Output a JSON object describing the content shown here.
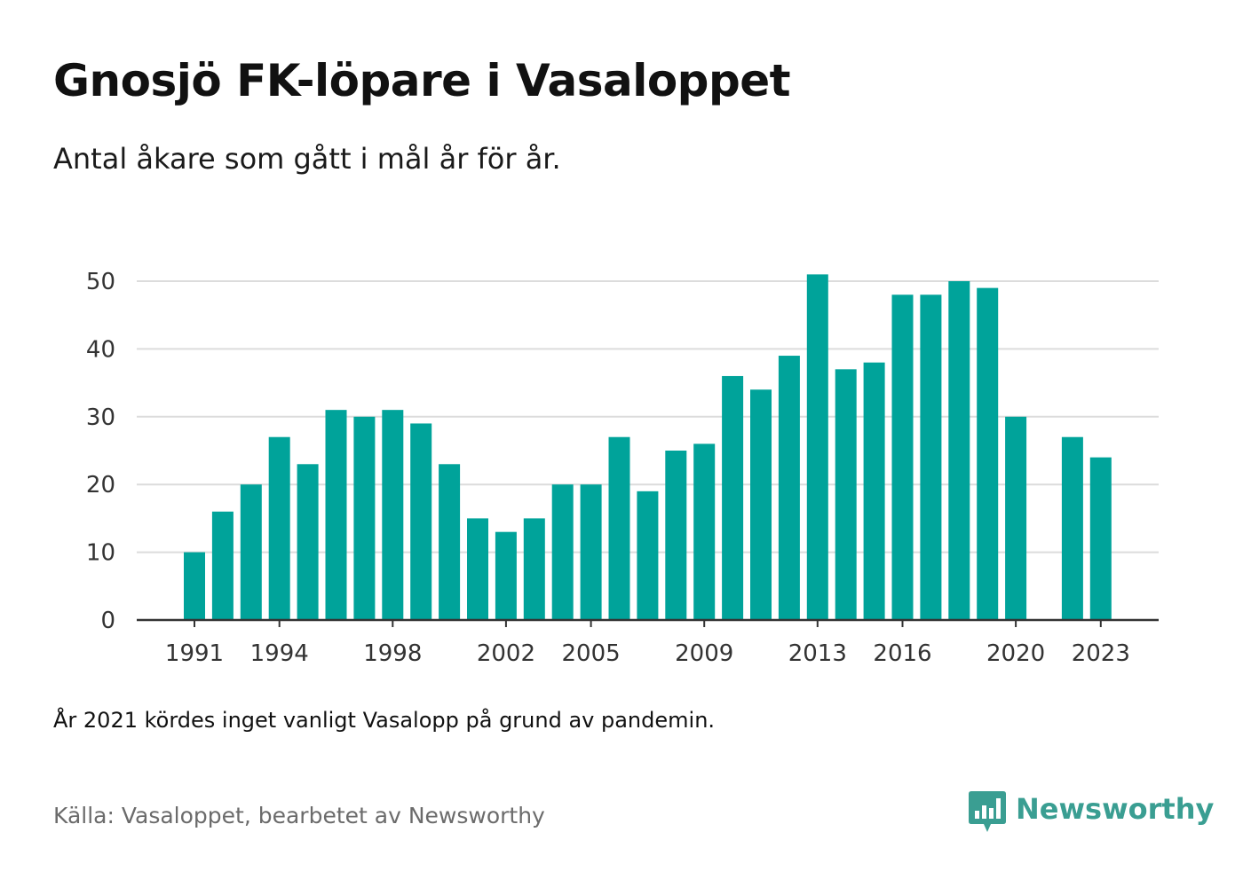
{
  "header": {
    "title": "Gnosjö FK-löpare i Vasaloppet",
    "subtitle": "Antal åkare som gått i mål år för år."
  },
  "footer": {
    "note": "År 2021 kördes inget vanligt Vasalopp på grund av pandemin.",
    "source": "Källa: Vasaloppet, bearbetet av Newsworthy",
    "brand": "Newsworthy",
    "brand_icon": "newsworthy-logo-icon",
    "brand_color": "#3a9e92"
  },
  "chart_data": {
    "type": "bar",
    "title": "Gnosjö FK-löpare i Vasaloppet",
    "subtitle": "Antal åkare som gått i mål år för år.",
    "xlabel": "",
    "ylabel": "",
    "categories": [
      1991,
      1992,
      1993,
      1994,
      1995,
      1996,
      1997,
      1998,
      1999,
      2000,
      2001,
      2002,
      2003,
      2004,
      2005,
      2006,
      2007,
      2008,
      2009,
      2010,
      2011,
      2012,
      2013,
      2014,
      2015,
      2016,
      2017,
      2018,
      2019,
      2020,
      2021,
      2022,
      2023
    ],
    "values": [
      10,
      16,
      20,
      27,
      23,
      31,
      30,
      31,
      29,
      23,
      15,
      13,
      15,
      20,
      20,
      27,
      19,
      25,
      26,
      36,
      34,
      39,
      51,
      37,
      38,
      48,
      48,
      50,
      49,
      30,
      null,
      27,
      24
    ],
    "x_tick_labels": [
      "1991",
      "1994",
      "1998",
      "2002",
      "2005",
      "2009",
      "2013",
      "2016",
      "2020",
      "2023"
    ],
    "y_ticks": [
      0,
      10,
      20,
      30,
      40,
      50
    ],
    "ylim": [
      0,
      55
    ],
    "grid": true,
    "legend": "none",
    "bar_color": "#00a39a",
    "grid_color": "#dcdcdc",
    "axis_color": "#333333"
  }
}
